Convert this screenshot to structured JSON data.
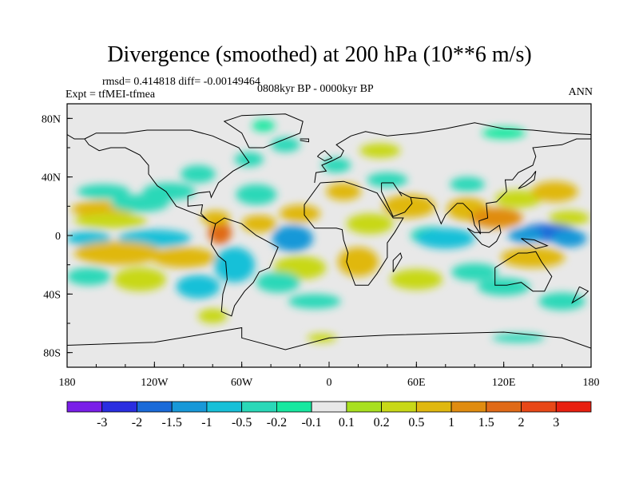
{
  "chart_data": {
    "type": "heatmap",
    "title": "Divergence (smoothed) at 200 hPa (10**6 m/s)",
    "stats_text": "rmsd= 0.414818 diff= -0.00149464",
    "experiment_text": "Expt = tfMEI-tfmea",
    "period_text": "0808kyr BP - 0000kyr BP",
    "season_text": "ANN",
    "projection": "cylindrical equidistant",
    "xlim": [
      -180,
      180
    ],
    "ylim": [
      -90,
      90
    ],
    "x_ticks": [
      {
        "value": -180,
        "label": "180"
      },
      {
        "value": -120,
        "label": "120W"
      },
      {
        "value": -60,
        "label": "60W"
      },
      {
        "value": 0,
        "label": "0"
      },
      {
        "value": 60,
        "label": "60E"
      },
      {
        "value": 120,
        "label": "120E"
      },
      {
        "value": 180,
        "label": "180"
      }
    ],
    "y_ticks": [
      {
        "value": 80,
        "label": "80N"
      },
      {
        "value": 40,
        "label": "40N"
      },
      {
        "value": 0,
        "label": "0"
      },
      {
        "value": -40,
        "label": "40S"
      },
      {
        "value": -80,
        "label": "80S"
      }
    ],
    "colorbar": {
      "colors": [
        "#7a1ee8",
        "#2a2ee0",
        "#1a6ad8",
        "#1898d8",
        "#18c0d8",
        "#2ad8b8",
        "#18e8a0",
        "#e8e8e8",
        "#a8e020",
        "#c8d818",
        "#e0b810",
        "#e08c10",
        "#e06a18",
        "#e84818",
        "#e82010"
      ],
      "labels": [
        "-3",
        "-2",
        "-1.5",
        "-1",
        "-0.5",
        "-0.2",
        "-0.1",
        "0.1",
        "0.2",
        "0.5",
        "1",
        "1.5",
        "2",
        "3"
      ]
    },
    "background_color": "#e8e8e8",
    "field_patches": [
      {
        "lon": -155,
        "lat": 18,
        "rlon": 22,
        "rlat": 6,
        "value": 0.6
      },
      {
        "lon": -150,
        "lat": 10,
        "rlon": 25,
        "rlat": 5,
        "value": 0.3
      },
      {
        "lon": -130,
        "lat": 22,
        "rlon": 20,
        "rlat": 6,
        "value": -0.3
      },
      {
        "lon": -155,
        "lat": 30,
        "rlon": 18,
        "rlat": 5,
        "value": -0.4
      },
      {
        "lon": -110,
        "lat": 30,
        "rlon": 18,
        "rlat": 6,
        "value": -0.3
      },
      {
        "lon": -165,
        "lat": -2,
        "rlon": 15,
        "rlat": 5,
        "value": -0.8
      },
      {
        "lon": -120,
        "lat": -2,
        "rlon": 25,
        "rlat": 6,
        "value": -1.0
      },
      {
        "lon": -145,
        "lat": -12,
        "rlon": 30,
        "rlat": 8,
        "value": 0.8
      },
      {
        "lon": -100,
        "lat": -15,
        "rlon": 22,
        "rlat": 7,
        "value": 0.6
      },
      {
        "lon": -165,
        "lat": -28,
        "rlon": 15,
        "rlat": 6,
        "value": -0.4
      },
      {
        "lon": -130,
        "lat": -30,
        "rlon": 18,
        "rlat": 8,
        "value": 0.4
      },
      {
        "lon": -90,
        "lat": -35,
        "rlon": 15,
        "rlat": 8,
        "value": -0.6
      },
      {
        "lon": -65,
        "lat": -20,
        "rlon": 14,
        "rlat": 12,
        "value": -0.8
      },
      {
        "lon": -75,
        "lat": 2,
        "rlon": 8,
        "rlat": 8,
        "value": 1.5
      },
      {
        "lon": -78,
        "lat": 12,
        "rlon": 10,
        "rlat": 5,
        "value": 0.6
      },
      {
        "lon": -90,
        "lat": 42,
        "rlon": 12,
        "rlat": 6,
        "value": -0.3
      },
      {
        "lon": -55,
        "lat": 52,
        "rlon": 10,
        "rlat": 5,
        "value": -0.3
      },
      {
        "lon": -30,
        "lat": 62,
        "rlon": 10,
        "rlat": 5,
        "value": -0.3
      },
      {
        "lon": -50,
        "lat": 28,
        "rlon": 14,
        "rlat": 7,
        "value": -0.4
      },
      {
        "lon": -48,
        "lat": 8,
        "rlon": 12,
        "rlat": 6,
        "value": 0.6
      },
      {
        "lon": -25,
        "lat": -2,
        "rlon": 14,
        "rlat": 9,
        "value": -1.5
      },
      {
        "lon": -20,
        "lat": 15,
        "rlon": 14,
        "rlat": 6,
        "value": 0.6
      },
      {
        "lon": -20,
        "lat": -22,
        "rlon": 18,
        "rlat": 8,
        "value": 0.4
      },
      {
        "lon": -35,
        "lat": -32,
        "rlon": 15,
        "rlat": 7,
        "value": -0.4
      },
      {
        "lon": 20,
        "lat": -18,
        "rlon": 14,
        "rlat": 10,
        "value": 0.6
      },
      {
        "lon": 28,
        "lat": 8,
        "rlon": 16,
        "rlat": 7,
        "value": 0.4
      },
      {
        "lon": 10,
        "lat": 30,
        "rlon": 12,
        "rlat": 6,
        "value": 0.6
      },
      {
        "lon": 5,
        "lat": 48,
        "rlon": 10,
        "rlat": 5,
        "value": -0.4
      },
      {
        "lon": 40,
        "lat": 38,
        "rlon": 14,
        "rlat": 5,
        "value": -0.4
      },
      {
        "lon": 35,
        "lat": 58,
        "rlon": 14,
        "rlat": 5,
        "value": 0.4
      },
      {
        "lon": 55,
        "lat": 20,
        "rlon": 18,
        "rlat": 8,
        "value": 0.5
      },
      {
        "lon": 70,
        "lat": 0,
        "rlon": 14,
        "rlat": 6,
        "value": -0.4
      },
      {
        "lon": 80,
        "lat": -2,
        "rlon": 20,
        "rlat": 7,
        "value": -1.0
      },
      {
        "lon": 95,
        "lat": 18,
        "rlon": 14,
        "rlat": 8,
        "value": 0.6
      },
      {
        "lon": 115,
        "lat": 12,
        "rlon": 18,
        "rlat": 7,
        "value": 1.0
      },
      {
        "lon": 130,
        "lat": 25,
        "rlon": 16,
        "rlat": 6,
        "value": 0.3
      },
      {
        "lon": 95,
        "lat": 35,
        "rlon": 12,
        "rlat": 5,
        "value": -0.4
      },
      {
        "lon": 150,
        "lat": 2,
        "rlon": 20,
        "rlat": 6,
        "value": -2.0
      },
      {
        "lon": 135,
        "lat": 0,
        "rlon": 12,
        "rlat": 5,
        "value": -1.5
      },
      {
        "lon": 165,
        "lat": -2,
        "rlon": 12,
        "rlat": 6,
        "value": -1.5
      },
      {
        "lon": 140,
        "lat": -15,
        "rlon": 22,
        "rlat": 7,
        "value": 0.6
      },
      {
        "lon": 155,
        "lat": 30,
        "rlon": 16,
        "rlat": 7,
        "value": 0.6
      },
      {
        "lon": 165,
        "lat": 12,
        "rlon": 14,
        "rlat": 5,
        "value": 0.4
      },
      {
        "lon": 100,
        "lat": -25,
        "rlon": 16,
        "rlat": 6,
        "value": -0.4
      },
      {
        "lon": 60,
        "lat": -30,
        "rlon": 18,
        "rlat": 7,
        "value": 0.3
      },
      {
        "lon": 120,
        "lat": -35,
        "rlon": 18,
        "rlat": 6,
        "value": -0.3
      },
      {
        "lon": 160,
        "lat": -45,
        "rlon": 16,
        "rlat": 6,
        "value": -0.3
      },
      {
        "lon": -10,
        "lat": -45,
        "rlon": 18,
        "rlat": 5,
        "value": -0.3
      },
      {
        "lon": -5,
        "lat": -70,
        "rlon": 10,
        "rlat": 3,
        "value": 0.3
      },
      {
        "lon": 130,
        "lat": -70,
        "rlon": 18,
        "rlat": 3,
        "value": -0.3
      },
      {
        "lon": -80,
        "lat": -55,
        "rlon": 10,
        "rlat": 5,
        "value": 0.4
      },
      {
        "lon": -45,
        "lat": 75,
        "rlon": 8,
        "rlat": 4,
        "value": -0.2
      },
      {
        "lon": 120,
        "lat": 70,
        "rlon": 15,
        "rlat": 4,
        "value": -0.2
      }
    ]
  }
}
